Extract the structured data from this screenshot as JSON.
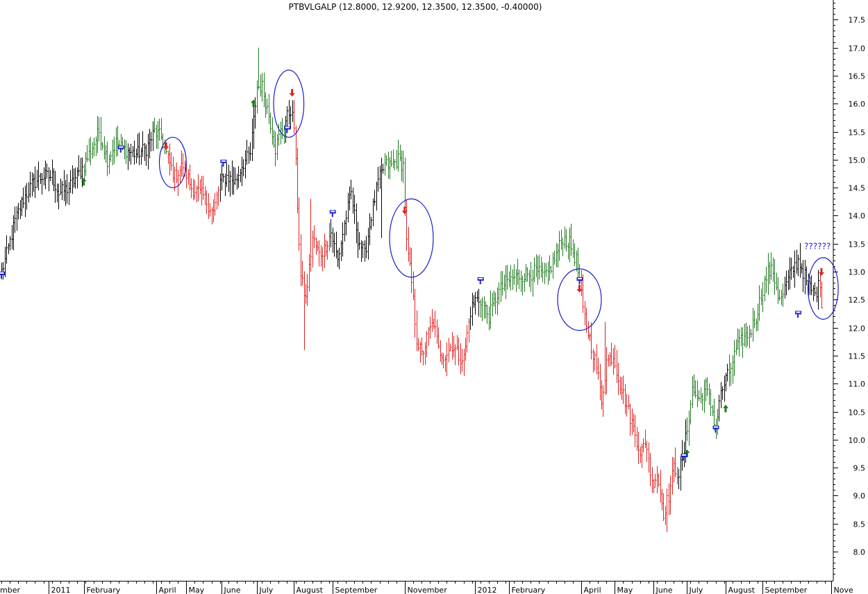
{
  "chart_data": {
    "type": "ohlc",
    "title": "PTBVLGALP (12.8000, 12.9200, 12.3500, 12.3500, -0.40000)",
    "y_axis": {
      "position": "right",
      "min": 7.5,
      "max": 17.8,
      "ticks": [
        "8.0",
        "8.5",
        "9.0",
        "9.5",
        "10.0",
        "10.5",
        "11.0",
        "11.5",
        "12.0",
        "12.5",
        "13.0",
        "13.5",
        "14.0",
        "14.5",
        "15.0",
        "15.5",
        "16.0",
        "16.5",
        "17.0",
        "17.5"
      ]
    },
    "x_axis": {
      "labels": [
        {
          "label": "mber",
          "day": 0
        },
        {
          "label": "2011",
          "day": 28
        },
        {
          "label": "February",
          "day": 49
        },
        {
          "label": "April",
          "day": 92
        },
        {
          "label": "May",
          "day": 110
        },
        {
          "label": "June",
          "day": 131
        },
        {
          "label": "July",
          "day": 152
        },
        {
          "label": "August",
          "day": 174
        },
        {
          "label": "September",
          "day": 197
        },
        {
          "label": "November",
          "day": 240
        },
        {
          "label": "2012",
          "day": 282
        },
        {
          "label": "February",
          "day": 302
        },
        {
          "label": "April",
          "day": 345
        },
        {
          "label": "May",
          "day": 365
        },
        {
          "label": "June",
          "day": 388
        },
        {
          "label": "July",
          "day": 408
        },
        {
          "label": "August",
          "day": 431
        },
        {
          "label": "September",
          "day": 453
        },
        {
          "label": "Nove",
          "day": 494
        }
      ]
    },
    "colors": {
      "neutral": "#000000",
      "up": "#1e7a1e",
      "down": "#e02020",
      "marker": "#2020d0",
      "circle": "#1a1acc"
    },
    "price_path": [
      {
        "day": 0,
        "close": 13.0,
        "trend": "neutral"
      },
      {
        "day": 3,
        "close": 13.3,
        "trend": "neutral"
      },
      {
        "day": 8,
        "close": 13.9,
        "trend": "neutral"
      },
      {
        "day": 13,
        "close": 14.3,
        "trend": "neutral"
      },
      {
        "day": 18,
        "close": 14.55,
        "trend": "neutral"
      },
      {
        "day": 24,
        "close": 14.7,
        "trend": "neutral"
      },
      {
        "day": 30,
        "close": 14.7,
        "trend": "neutral"
      },
      {
        "day": 34,
        "close": 14.4,
        "trend": "neutral"
      },
      {
        "day": 40,
        "close": 14.5,
        "trend": "neutral"
      },
      {
        "day": 46,
        "close": 14.75,
        "trend": "neutral"
      },
      {
        "day": 49,
        "close": 14.9,
        "trend": "up"
      },
      {
        "day": 55,
        "close": 15.3,
        "trend": "up"
      },
      {
        "day": 58,
        "close": 15.5,
        "trend": "up"
      },
      {
        "day": 63,
        "close": 15.0,
        "trend": "up"
      },
      {
        "day": 68,
        "close": 15.3,
        "trend": "up"
      },
      {
        "day": 72,
        "close": 15.2,
        "trend": "up"
      },
      {
        "day": 75,
        "close": 15.15,
        "trend": "neutral"
      },
      {
        "day": 80,
        "close": 15.1,
        "trend": "neutral"
      },
      {
        "day": 86,
        "close": 15.2,
        "trend": "neutral"
      },
      {
        "day": 91,
        "close": 15.5,
        "trend": "up"
      },
      {
        "day": 95,
        "close": 15.4,
        "trend": "up"
      },
      {
        "day": 99,
        "close": 15.0,
        "trend": "down"
      },
      {
        "day": 103,
        "close": 14.7,
        "trend": "down"
      },
      {
        "day": 108,
        "close": 14.9,
        "trend": "down"
      },
      {
        "day": 113,
        "close": 14.5,
        "trend": "down"
      },
      {
        "day": 120,
        "close": 14.35,
        "trend": "down"
      },
      {
        "day": 126,
        "close": 14.05,
        "trend": "down"
      },
      {
        "day": 130,
        "close": 14.6,
        "trend": "neutral"
      },
      {
        "day": 134,
        "close": 14.7,
        "trend": "neutral"
      },
      {
        "day": 139,
        "close": 14.6,
        "trend": "neutral"
      },
      {
        "day": 143,
        "close": 14.9,
        "trend": "neutral"
      },
      {
        "day": 148,
        "close": 15.1,
        "trend": "neutral"
      },
      {
        "day": 152,
        "close": 16.3,
        "trend": "up"
      },
      {
        "day": 155,
        "close": 16.3,
        "trend": "up"
      },
      {
        "day": 159,
        "close": 15.8,
        "trend": "up"
      },
      {
        "day": 163,
        "close": 15.2,
        "trend": "up"
      },
      {
        "day": 166,
        "close": 15.5,
        "trend": "up"
      },
      {
        "day": 169,
        "close": 15.7,
        "trend": "neutral"
      },
      {
        "day": 172,
        "close": 15.9,
        "trend": "neutral"
      },
      {
        "day": 174,
        "close": 15.6,
        "trend": "down"
      },
      {
        "day": 176,
        "close": 14.2,
        "trend": "down"
      },
      {
        "day": 178,
        "close": 12.9,
        "trend": "down"
      },
      {
        "day": 181,
        "close": 12.5,
        "trend": "down"
      },
      {
        "day": 185,
        "close": 13.6,
        "trend": "down"
      },
      {
        "day": 189,
        "close": 13.3,
        "trend": "down"
      },
      {
        "day": 192,
        "close": 13.4,
        "trend": "down"
      },
      {
        "day": 196,
        "close": 13.7,
        "trend": "neutral"
      },
      {
        "day": 200,
        "close": 13.2,
        "trend": "neutral"
      },
      {
        "day": 205,
        "close": 14.0,
        "trend": "neutral"
      },
      {
        "day": 208,
        "close": 14.4,
        "trend": "neutral"
      },
      {
        "day": 212,
        "close": 13.6,
        "trend": "neutral"
      },
      {
        "day": 216,
        "close": 13.3,
        "trend": "neutral"
      },
      {
        "day": 220,
        "close": 14.0,
        "trend": "neutral"
      },
      {
        "day": 224,
        "close": 14.6,
        "trend": "neutral"
      },
      {
        "day": 228,
        "close": 14.9,
        "trend": "up"
      },
      {
        "day": 232,
        "close": 14.9,
        "trend": "up"
      },
      {
        "day": 236,
        "close": 15.0,
        "trend": "up"
      },
      {
        "day": 239,
        "close": 14.9,
        "trend": "up"
      },
      {
        "day": 241,
        "close": 13.5,
        "trend": "down"
      },
      {
        "day": 244,
        "close": 12.8,
        "trend": "down"
      },
      {
        "day": 247,
        "close": 11.8,
        "trend": "down"
      },
      {
        "day": 250,
        "close": 11.5,
        "trend": "down"
      },
      {
        "day": 254,
        "close": 11.9,
        "trend": "down"
      },
      {
        "day": 257,
        "close": 12.1,
        "trend": "down"
      },
      {
        "day": 260,
        "close": 11.6,
        "trend": "down"
      },
      {
        "day": 264,
        "close": 11.5,
        "trend": "down"
      },
      {
        "day": 268,
        "close": 11.7,
        "trend": "down"
      },
      {
        "day": 272,
        "close": 11.5,
        "trend": "down"
      },
      {
        "day": 275,
        "close": 11.45,
        "trend": "down"
      },
      {
        "day": 279,
        "close": 12.3,
        "trend": "neutral"
      },
      {
        "day": 282,
        "close": 12.5,
        "trend": "neutral"
      },
      {
        "day": 285,
        "close": 12.5,
        "trend": "up"
      },
      {
        "day": 290,
        "close": 12.2,
        "trend": "up"
      },
      {
        "day": 295,
        "close": 12.6,
        "trend": "up"
      },
      {
        "day": 300,
        "close": 12.8,
        "trend": "up"
      },
      {
        "day": 305,
        "close": 12.9,
        "trend": "up"
      },
      {
        "day": 312,
        "close": 12.95,
        "trend": "up"
      },
      {
        "day": 318,
        "close": 13.0,
        "trend": "up"
      },
      {
        "day": 324,
        "close": 12.9,
        "trend": "up"
      },
      {
        "day": 330,
        "close": 13.3,
        "trend": "up"
      },
      {
        "day": 334,
        "close": 13.6,
        "trend": "up"
      },
      {
        "day": 338,
        "close": 13.5,
        "trend": "up"
      },
      {
        "day": 342,
        "close": 13.2,
        "trend": "up"
      },
      {
        "day": 344,
        "close": 12.8,
        "trend": "down"
      },
      {
        "day": 346,
        "close": 12.3,
        "trend": "down"
      },
      {
        "day": 350,
        "close": 11.8,
        "trend": "down"
      },
      {
        "day": 354,
        "close": 11.3,
        "trend": "down"
      },
      {
        "day": 357,
        "close": 10.7,
        "trend": "down"
      },
      {
        "day": 360,
        "close": 11.4,
        "trend": "down"
      },
      {
        "day": 364,
        "close": 11.5,
        "trend": "down"
      },
      {
        "day": 368,
        "close": 11.0,
        "trend": "down"
      },
      {
        "day": 372,
        "close": 10.6,
        "trend": "down"
      },
      {
        "day": 376,
        "close": 10.2,
        "trend": "down"
      },
      {
        "day": 380,
        "close": 9.8,
        "trend": "down"
      },
      {
        "day": 384,
        "close": 9.9,
        "trend": "down"
      },
      {
        "day": 387,
        "close": 9.2,
        "trend": "down"
      },
      {
        "day": 390,
        "close": 9.4,
        "trend": "down"
      },
      {
        "day": 394,
        "close": 8.7,
        "trend": "down"
      },
      {
        "day": 397,
        "close": 9.0,
        "trend": "down"
      },
      {
        "day": 400,
        "close": 9.5,
        "trend": "down"
      },
      {
        "day": 403,
        "close": 9.4,
        "trend": "neutral"
      },
      {
        "day": 406,
        "close": 9.8,
        "trend": "neutral"
      },
      {
        "day": 408,
        "close": 10.2,
        "trend": "up"
      },
      {
        "day": 411,
        "close": 10.9,
        "trend": "up"
      },
      {
        "day": 415,
        "close": 10.7,
        "trend": "up"
      },
      {
        "day": 419,
        "close": 10.95,
        "trend": "up"
      },
      {
        "day": 423,
        "close": 10.5,
        "trend": "up"
      },
      {
        "day": 425,
        "close": 10.2,
        "trend": "up"
      },
      {
        "day": 427,
        "close": 10.7,
        "trend": "neutral"
      },
      {
        "day": 430,
        "close": 11.0,
        "trend": "neutral"
      },
      {
        "day": 433,
        "close": 11.2,
        "trend": "up"
      },
      {
        "day": 437,
        "close": 11.6,
        "trend": "up"
      },
      {
        "day": 441,
        "close": 11.8,
        "trend": "up"
      },
      {
        "day": 445,
        "close": 11.9,
        "trend": "up"
      },
      {
        "day": 449,
        "close": 12.2,
        "trend": "up"
      },
      {
        "day": 453,
        "close": 12.7,
        "trend": "up"
      },
      {
        "day": 456,
        "close": 13.0,
        "trend": "up"
      },
      {
        "day": 459,
        "close": 13.0,
        "trend": "up"
      },
      {
        "day": 462,
        "close": 12.6,
        "trend": "up"
      },
      {
        "day": 464,
        "close": 12.5,
        "trend": "up"
      },
      {
        "day": 466,
        "close": 12.7,
        "trend": "neutral"
      },
      {
        "day": 470,
        "close": 13.0,
        "trend": "neutral"
      },
      {
        "day": 474,
        "close": 13.2,
        "trend": "neutral"
      },
      {
        "day": 477,
        "close": 13.0,
        "trend": "neutral"
      },
      {
        "day": 480,
        "close": 12.75,
        "trend": "neutral"
      },
      {
        "day": 484,
        "close": 12.6,
        "trend": "neutral"
      },
      {
        "day": 487,
        "close": 12.8,
        "trend": "down"
      },
      {
        "day": 488,
        "close": 12.35,
        "trend": "down"
      }
    ],
    "signals": [
      {
        "type": "up-arrow",
        "day": 49,
        "price": 14.6
      },
      {
        "type": "up-arrow",
        "day": 150,
        "price": 16.0
      },
      {
        "type": "up-arrow",
        "day": 408,
        "price": 9.75
      },
      {
        "type": "up-arrow",
        "day": 431,
        "price": 10.55
      },
      {
        "type": "down-arrow",
        "day": 98,
        "price": 15.25
      },
      {
        "type": "down-arrow",
        "day": 173,
        "price": 16.2
      },
      {
        "type": "down-arrow",
        "day": 240,
        "price": 14.1
      },
      {
        "type": "down-arrow",
        "day": 344,
        "price": 12.7
      },
      {
        "type": "down-arrow",
        "day": 488,
        "price": 13.0
      },
      {
        "type": "flag",
        "day": 0,
        "price": 12.95
      },
      {
        "type": "flag",
        "day": 71,
        "price": 15.2
      },
      {
        "type": "flag",
        "day": 132,
        "price": 14.95
      },
      {
        "type": "flag",
        "day": 170,
        "price": 15.55
      },
      {
        "type": "flag",
        "day": 197,
        "price": 14.05
      },
      {
        "type": "flag",
        "day": 285,
        "price": 12.85
      },
      {
        "type": "flag",
        "day": 344,
        "price": 12.85
      },
      {
        "type": "flag",
        "day": 406,
        "price": 9.7
      },
      {
        "type": "flag",
        "day": 425,
        "price": 10.2
      },
      {
        "type": "flag",
        "day": 474,
        "price": 12.25
      }
    ],
    "highlight_circles": [
      {
        "day": 102,
        "price": 14.95,
        "r_days": 8,
        "r_price": 0.45
      },
      {
        "day": 171,
        "price": 16.0,
        "r_days": 9,
        "r_price": 0.6
      },
      {
        "day": 244,
        "price": 13.6,
        "r_days": 13,
        "r_price": 0.7
      },
      {
        "day": 344,
        "price": 12.5,
        "r_days": 13,
        "r_price": 0.55
      },
      {
        "day": 489,
        "price": 12.7,
        "r_days": 9,
        "r_price": 0.55
      }
    ],
    "annotation": {
      "text": "??????",
      "day": 486,
      "price": 13.45
    }
  }
}
